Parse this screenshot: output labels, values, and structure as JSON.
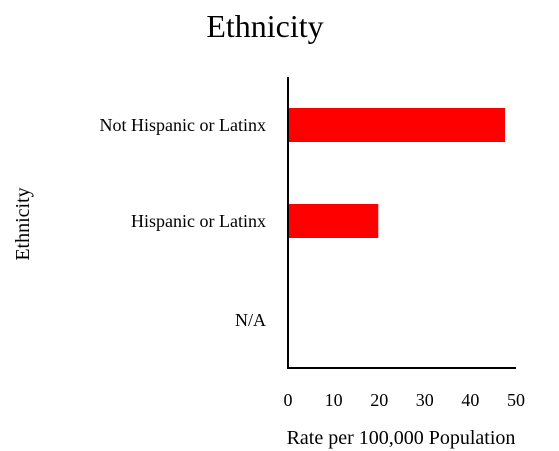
{
  "chart_data": {
    "type": "bar",
    "orientation": "horizontal",
    "title": "Ethnicity",
    "xlabel": "Rate per 100,000 Population",
    "ylabel": "Ethnicity",
    "categories": [
      "Not Hispanic or Latinx",
      "Hispanic or Latinx",
      "N/A"
    ],
    "values": [
      47.6,
      19.8,
      0
    ],
    "xlim": [
      0,
      50
    ],
    "xticks": [
      0,
      10,
      20,
      30,
      40,
      50
    ],
    "grid": false,
    "bar_color": "#ff0000"
  }
}
